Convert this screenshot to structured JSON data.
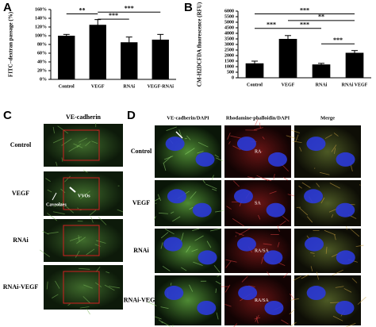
{
  "chart_data": [
    {
      "type": "bar",
      "panel": "A",
      "y_label": "FITC−dextran passage (%)",
      "categories": [
        "Control",
        "VEGF",
        "RNAi",
        "VEGF-RNAi"
      ],
      "values": [
        100,
        125,
        85,
        91
      ],
      "errors": [
        3,
        12,
        12,
        12
      ],
      "color": "#000000",
      "ylim": [
        0,
        160
      ],
      "yticks": [
        {
          "value": 0,
          "label": "0%"
        },
        {
          "value": 20,
          "label": "20%"
        },
        {
          "value": 40,
          "label": "40%"
        },
        {
          "value": 60,
          "label": "60%"
        },
        {
          "value": 80,
          "label": "80%"
        },
        {
          "value": 100,
          "label": "100%"
        },
        {
          "value": 120,
          "label": "120%"
        },
        {
          "value": 140,
          "label": "140%"
        },
        {
          "value": 160,
          "label": "160%"
        }
      ],
      "significance": [
        "**",
        "***",
        "***"
      ]
    },
    {
      "type": "bar",
      "panel": "B",
      "y_label": "CM-H2DCFDA fluorescence (RFU)",
      "categories": [
        "Control",
        "VEGF",
        "RNAi",
        "RNAi VEGF"
      ],
      "values": [
        1300,
        3500,
        1200,
        2250
      ],
      "errors": [
        200,
        300,
        100,
        200
      ],
      "color": "#000000",
      "ylim": [
        0,
        6000
      ],
      "yticks": [
        0,
        500,
        1000,
        1500,
        2000,
        2500,
        3000,
        3500,
        4000,
        4500,
        5000,
        5500,
        6000
      ],
      "significance": [
        "***",
        "**",
        "***",
        "***",
        "***"
      ]
    }
  ],
  "panel_c": {
    "letter": "C",
    "header": "VE-cadherin",
    "rows": [
      "Control",
      "VEGF",
      "RNAi",
      "RNAi-VEGF"
    ],
    "annotations": [
      "VVOs",
      "Caveolaes"
    ]
  },
  "panel_d": {
    "letter": "D",
    "columns": [
      "VE-cadherin/DAPI",
      "Rhodamine-phalloidin/DAPI",
      "Merge"
    ],
    "rows": [
      "Control",
      "VEGF",
      "RNAi",
      "RNAi-VEGF"
    ],
    "annotations": [
      "RA",
      "SA",
      "RA/SA",
      "RA/SA"
    ]
  }
}
